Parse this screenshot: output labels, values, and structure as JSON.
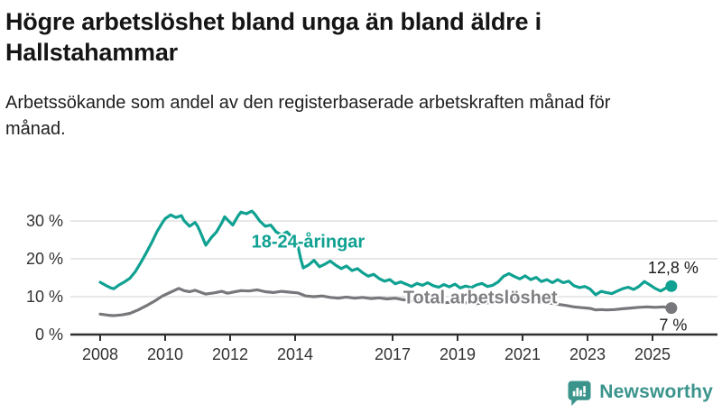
{
  "header": {
    "title": "Högre arbetslöshet bland unga än bland äldre i Hallstahammar",
    "subtitle": "Arbetssökande som andel av den registerbaserade arbetskraften månad för månad."
  },
  "chart_data": {
    "type": "line",
    "title": "Högre arbetslöshet bland unga än bland äldre i Hallstahammar",
    "subtitle": "Arbetssökande som andel av den registerbaserade arbetskraften månad för månad.",
    "unit": "%",
    "grid": true,
    "legend_position": "inline-labels",
    "style": {
      "grid_color": "#d9d9d9",
      "axis_color": "#2f2f2f",
      "tick_text_color": "#333333",
      "end_label_color": "#1a1a1a",
      "background": "#ffffff"
    },
    "x_axis": {
      "label": "",
      "range": [
        2007.1,
        2026.2
      ],
      "ticks": [
        {
          "value": 2008,
          "label": "2008"
        },
        {
          "value": 2010,
          "label": "2010"
        },
        {
          "value": 2012,
          "label": "2012"
        },
        {
          "value": 2014,
          "label": "2014"
        },
        {
          "value": 2017,
          "label": "2017"
        },
        {
          "value": 2019,
          "label": "2019"
        },
        {
          "value": 2021,
          "label": "2021"
        },
        {
          "value": 2023,
          "label": "2023"
        },
        {
          "value": 2025,
          "label": "2025"
        }
      ]
    },
    "y_axis": {
      "label": "",
      "range": [
        0,
        35
      ],
      "ticks": [
        {
          "value": 0,
          "label": "0 %"
        },
        {
          "value": 10,
          "label": "10 %"
        },
        {
          "value": 20,
          "label": "20 %"
        },
        {
          "value": 30,
          "label": "30 %"
        }
      ]
    },
    "series": [
      {
        "id": "youth",
        "name": "18-24-åringar",
        "color": "#0fa191",
        "label_color": "#0fa191",
        "label_at": [
          2014.4,
          24.6
        ],
        "end_value": 12.8,
        "end_label": "12,8 %",
        "end_label_position": "above",
        "points": [
          [
            2008.0,
            13.8
          ],
          [
            2008.17,
            13.0
          ],
          [
            2008.33,
            12.3
          ],
          [
            2008.42,
            12.1
          ],
          [
            2008.58,
            13.1
          ],
          [
            2008.75,
            13.9
          ],
          [
            2008.92,
            14.9
          ],
          [
            2009.08,
            16.6
          ],
          [
            2009.25,
            19.0
          ],
          [
            2009.42,
            21.6
          ],
          [
            2009.58,
            24.2
          ],
          [
            2009.75,
            27.2
          ],
          [
            2009.92,
            29.6
          ],
          [
            2010.0,
            30.6
          ],
          [
            2010.17,
            31.6
          ],
          [
            2010.33,
            30.9
          ],
          [
            2010.5,
            31.4
          ],
          [
            2010.58,
            30.1
          ],
          [
            2010.75,
            28.6
          ],
          [
            2010.92,
            29.6
          ],
          [
            2011.0,
            28.6
          ],
          [
            2011.08,
            27.1
          ],
          [
            2011.25,
            23.6
          ],
          [
            2011.42,
            25.6
          ],
          [
            2011.58,
            27.1
          ],
          [
            2011.75,
            29.6
          ],
          [
            2011.83,
            31.1
          ],
          [
            2011.92,
            30.3
          ],
          [
            2012.08,
            28.9
          ],
          [
            2012.25,
            31.4
          ],
          [
            2012.33,
            32.3
          ],
          [
            2012.5,
            31.9
          ],
          [
            2012.67,
            32.6
          ],
          [
            2012.75,
            31.9
          ],
          [
            2012.92,
            29.9
          ],
          [
            2013.08,
            28.6
          ],
          [
            2013.25,
            28.9
          ],
          [
            2013.42,
            27.1
          ],
          [
            2013.58,
            26.3
          ],
          [
            2013.75,
            27.1
          ],
          [
            2013.92,
            25.6
          ],
          [
            2014.08,
            23.6
          ],
          [
            2014.17,
            20.1
          ],
          [
            2014.25,
            17.6
          ],
          [
            2014.42,
            18.4
          ],
          [
            2014.58,
            19.6
          ],
          [
            2014.75,
            17.9
          ],
          [
            2014.92,
            18.6
          ],
          [
            2015.08,
            19.4
          ],
          [
            2015.25,
            18.3
          ],
          [
            2015.42,
            17.4
          ],
          [
            2015.58,
            18.1
          ],
          [
            2015.75,
            16.9
          ],
          [
            2015.92,
            17.4
          ],
          [
            2016.08,
            16.3
          ],
          [
            2016.25,
            15.4
          ],
          [
            2016.42,
            15.9
          ],
          [
            2016.58,
            14.8
          ],
          [
            2016.75,
            14.1
          ],
          [
            2016.92,
            14.5
          ],
          [
            2017.08,
            13.4
          ],
          [
            2017.25,
            13.9
          ],
          [
            2017.42,
            13.3
          ],
          [
            2017.58,
            12.7
          ],
          [
            2017.75,
            13.5
          ],
          [
            2017.92,
            13.0
          ],
          [
            2018.08,
            13.7
          ],
          [
            2018.25,
            12.9
          ],
          [
            2018.42,
            12.5
          ],
          [
            2018.58,
            13.2
          ],
          [
            2018.75,
            12.6
          ],
          [
            2018.92,
            13.3
          ],
          [
            2019.08,
            12.3
          ],
          [
            2019.25,
            12.8
          ],
          [
            2019.42,
            12.4
          ],
          [
            2019.58,
            13.1
          ],
          [
            2019.75,
            13.5
          ],
          [
            2019.92,
            12.7
          ],
          [
            2020.08,
            13.0
          ],
          [
            2020.25,
            13.9
          ],
          [
            2020.42,
            15.4
          ],
          [
            2020.58,
            16.1
          ],
          [
            2020.75,
            15.3
          ],
          [
            2020.92,
            14.7
          ],
          [
            2021.08,
            15.5
          ],
          [
            2021.25,
            14.5
          ],
          [
            2021.42,
            15.1
          ],
          [
            2021.58,
            14.0
          ],
          [
            2021.75,
            14.5
          ],
          [
            2021.92,
            13.7
          ],
          [
            2022.08,
            14.5
          ],
          [
            2022.25,
            13.7
          ],
          [
            2022.42,
            14.1
          ],
          [
            2022.58,
            12.9
          ],
          [
            2022.75,
            12.4
          ],
          [
            2022.92,
            12.7
          ],
          [
            2023.08,
            12.0
          ],
          [
            2023.25,
            10.5
          ],
          [
            2023.42,
            11.4
          ],
          [
            2023.58,
            11.1
          ],
          [
            2023.75,
            10.8
          ],
          [
            2023.92,
            11.5
          ],
          [
            2024.08,
            12.1
          ],
          [
            2024.25,
            12.5
          ],
          [
            2024.42,
            11.9
          ],
          [
            2024.58,
            12.7
          ],
          [
            2024.75,
            14.0
          ],
          [
            2024.92,
            13.1
          ],
          [
            2025.08,
            12.2
          ],
          [
            2025.25,
            11.5
          ],
          [
            2025.42,
            12.3
          ],
          [
            2025.58,
            12.8
          ]
        ]
      },
      {
        "id": "total",
        "name": "Total arbetslöshet",
        "color": "#78787c",
        "label_color": "#808084",
        "label_at": [
          2019.7,
          9.9
        ],
        "end_value": 7,
        "end_label": "7 %",
        "end_label_position": "below",
        "points": [
          [
            2008.0,
            5.4
          ],
          [
            2008.25,
            5.1
          ],
          [
            2008.42,
            5.0
          ],
          [
            2008.67,
            5.2
          ],
          [
            2008.92,
            5.6
          ],
          [
            2009.17,
            6.5
          ],
          [
            2009.42,
            7.6
          ],
          [
            2009.67,
            8.8
          ],
          [
            2009.92,
            10.2
          ],
          [
            2010.17,
            11.2
          ],
          [
            2010.42,
            12.2
          ],
          [
            2010.58,
            11.6
          ],
          [
            2010.75,
            11.3
          ],
          [
            2010.92,
            11.7
          ],
          [
            2011.08,
            11.2
          ],
          [
            2011.25,
            10.7
          ],
          [
            2011.5,
            11.0
          ],
          [
            2011.75,
            11.4
          ],
          [
            2011.92,
            10.9
          ],
          [
            2012.08,
            11.2
          ],
          [
            2012.33,
            11.6
          ],
          [
            2012.58,
            11.5
          ],
          [
            2012.83,
            11.8
          ],
          [
            2013.08,
            11.3
          ],
          [
            2013.33,
            11.1
          ],
          [
            2013.58,
            11.4
          ],
          [
            2013.83,
            11.2
          ],
          [
            2014.08,
            11.0
          ],
          [
            2014.33,
            10.2
          ],
          [
            2014.58,
            10.0
          ],
          [
            2014.83,
            10.2
          ],
          [
            2015.08,
            9.8
          ],
          [
            2015.33,
            9.6
          ],
          [
            2015.58,
            9.9
          ],
          [
            2015.83,
            9.6
          ],
          [
            2016.08,
            9.8
          ],
          [
            2016.33,
            9.5
          ],
          [
            2016.58,
            9.7
          ],
          [
            2016.83,
            9.4
          ],
          [
            2017.08,
            9.6
          ],
          [
            2017.33,
            9.2
          ],
          [
            2017.58,
            9.0
          ],
          [
            2017.83,
            9.2
          ],
          [
            2018.08,
            8.8
          ],
          [
            2018.33,
            8.6
          ],
          [
            2018.58,
            8.4
          ],
          [
            2018.83,
            8.5
          ],
          [
            2019.08,
            8.3
          ],
          [
            2019.33,
            8.4
          ],
          [
            2019.58,
            8.2
          ],
          [
            2019.83,
            8.3
          ],
          [
            2020.08,
            8.5
          ],
          [
            2020.33,
            9.3
          ],
          [
            2020.58,
            9.6
          ],
          [
            2020.83,
            9.4
          ],
          [
            2021.08,
            9.2
          ],
          [
            2021.33,
            8.9
          ],
          [
            2021.58,
            8.6
          ],
          [
            2021.83,
            8.3
          ],
          [
            2022.08,
            8.0
          ],
          [
            2022.33,
            7.7
          ],
          [
            2022.58,
            7.3
          ],
          [
            2022.83,
            7.1
          ],
          [
            2023.08,
            6.9
          ],
          [
            2023.25,
            6.5
          ],
          [
            2023.42,
            6.6
          ],
          [
            2023.58,
            6.5
          ],
          [
            2023.83,
            6.6
          ],
          [
            2024.08,
            6.8
          ],
          [
            2024.33,
            7.0
          ],
          [
            2024.58,
            7.2
          ],
          [
            2024.83,
            7.3
          ],
          [
            2025.08,
            7.2
          ],
          [
            2025.33,
            7.3
          ],
          [
            2025.58,
            7.0
          ]
        ]
      }
    ]
  },
  "footer": {
    "brand": "Newsworthy",
    "brand_color": "#3a948c",
    "logo_icon": "bar-chart-speech-bubble-icon"
  }
}
